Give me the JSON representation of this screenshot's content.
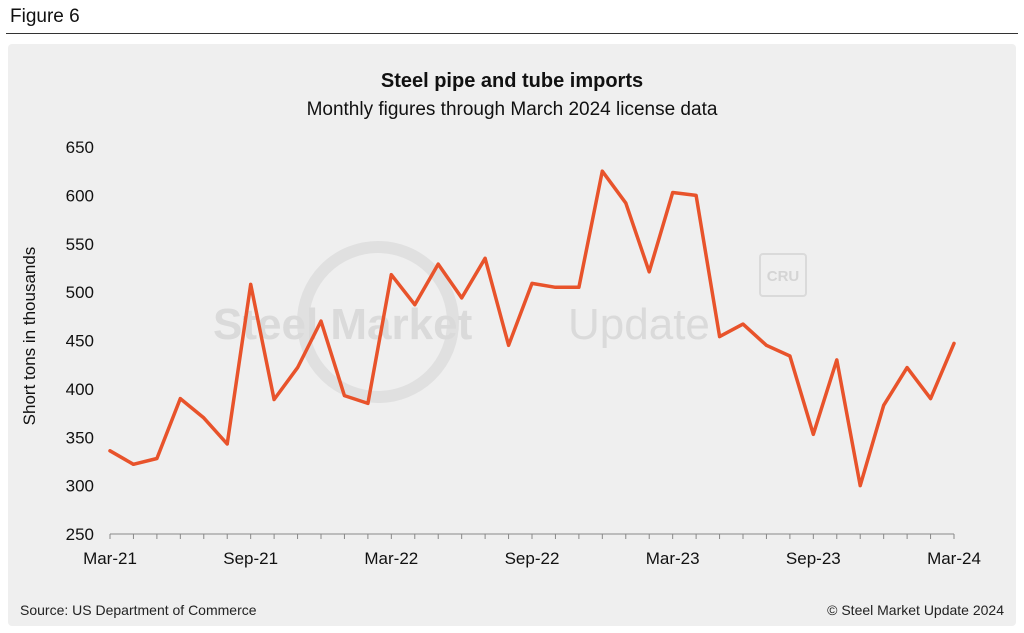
{
  "figure_label": "Figure 6",
  "source": "Source: US Department of Commerce",
  "copyright": "© Steel Market Update 2024",
  "watermark": {
    "word1": "Steel Market",
    "word2": "Update",
    "badge": "CRU"
  },
  "colors": {
    "line": "#e8532b",
    "panel": "#efefef",
    "axis": "#888888",
    "watermark": "#dadada"
  },
  "chart_data": {
    "type": "line",
    "title": "Steel pipe and tube imports",
    "subtitle": "Monthly figures through March 2024 license data",
    "xlabel": "",
    "ylabel": "Short tons in thousands",
    "ylim": [
      250,
      650
    ],
    "yticks": [
      250,
      300,
      350,
      400,
      450,
      500,
      550,
      600,
      650
    ],
    "xtick_labels": [
      "Mar-21",
      "Sep-21",
      "Mar-22",
      "Sep-22",
      "Mar-23",
      "Sep-23",
      "Mar-24"
    ],
    "xtick_every": 6,
    "grid": false,
    "legend": "none",
    "x": [
      "Mar-21",
      "Apr-21",
      "May-21",
      "Jun-21",
      "Jul-21",
      "Aug-21",
      "Sep-21",
      "Oct-21",
      "Nov-21",
      "Dec-21",
      "Jan-22",
      "Feb-22",
      "Mar-22",
      "Apr-22",
      "May-22",
      "Jun-22",
      "Jul-22",
      "Aug-22",
      "Sep-22",
      "Oct-22",
      "Nov-22",
      "Dec-22",
      "Jan-23",
      "Feb-23",
      "Mar-23",
      "Apr-23",
      "May-23",
      "Jun-23",
      "Jul-23",
      "Aug-23",
      "Sep-23",
      "Oct-23",
      "Nov-23",
      "Dec-23",
      "Jan-24",
      "Feb-24",
      "Mar-24"
    ],
    "series": [
      {
        "values": [
          336,
          322,
          328,
          390,
          370,
          343,
          508,
          389,
          422,
          470,
          393,
          385,
          518,
          487,
          529,
          494,
          535,
          445,
          509,
          505,
          505,
          625,
          592,
          521,
          603,
          600,
          454,
          467,
          445,
          434,
          353,
          430,
          300,
          383,
          422,
          390,
          447
        ]
      }
    ]
  }
}
